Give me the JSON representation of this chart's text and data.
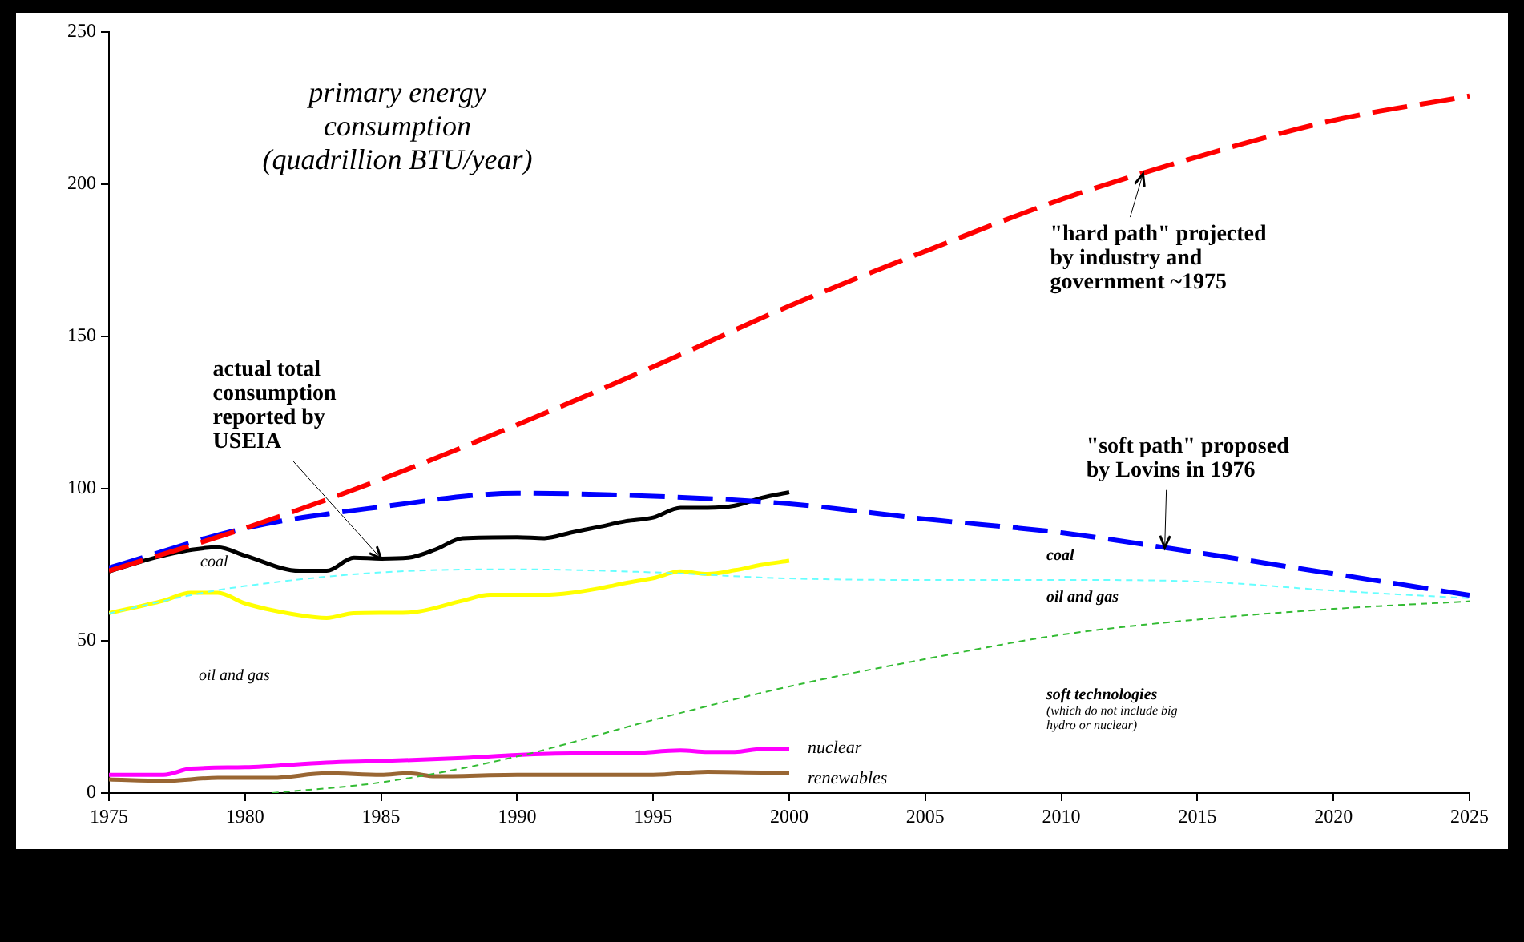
{
  "chart_data": {
    "type": "line",
    "title": "primary energy\nconsumption\n(quadrillion BTU/year)",
    "xlim": [
      1975,
      2025
    ],
    "xticks": [
      1975,
      1980,
      1985,
      1990,
      1995,
      2000,
      2005,
      2010,
      2015,
      2020,
      2025
    ],
    "ylim": [
      0,
      250
    ],
    "yticks": [
      0,
      50,
      100,
      150,
      200,
      250
    ],
    "grid": false,
    "legend": false,
    "marker": "none",
    "series": [
      {
        "type": "line",
        "color": "#ff0000",
        "line_style": "dashed",
        "x": [
          1975,
          1980,
          1985,
          1990,
          1995,
          2000,
          2005,
          2010,
          2015,
          2020,
          2025
        ],
        "values": [
          73,
          87,
          103,
          121,
          140,
          160,
          178,
          195,
          209,
          221,
          229
        ]
      },
      {
        "type": "line",
        "color": "#0000ff",
        "line_style": "dashed",
        "x": [
          1975,
          1980,
          1985,
          1990,
          1995,
          2000,
          2005,
          2010,
          2015,
          2020,
          2025
        ],
        "values": [
          74,
          87,
          94,
          98.5,
          97.5,
          95,
          90,
          85.5,
          79,
          72,
          65
        ]
      },
      {
        "type": "line",
        "color": "#66ffff",
        "line_style": "dashed",
        "x": [
          1975,
          1978,
          1980,
          1985,
          1990,
          1995,
          2000,
          2005,
          2010,
          2015,
          2020,
          2025
        ],
        "values": [
          59,
          65,
          68,
          72.5,
          73.5,
          72.5,
          70.5,
          70,
          70,
          69.5,
          66.5,
          64
        ]
      },
      {
        "type": "line",
        "color": "#33bb33",
        "line_style": "dashed",
        "x": [
          1981,
          1985,
          1990,
          1995,
          2000,
          2005,
          2010,
          2015,
          2020,
          2025
        ],
        "values": [
          0,
          3.5,
          12,
          24,
          35,
          44,
          52,
          57,
          60.5,
          63
        ]
      },
      {
        "type": "line",
        "color": "#000000",
        "line_style": "solid",
        "x": [
          1975,
          1977,
          1979,
          1980,
          1982,
          1983,
          1984,
          1985,
          1986,
          1987,
          1988,
          1990,
          1991,
          1992,
          1993,
          1994,
          1995,
          1996,
          1997,
          1998,
          1999,
          2000
        ],
        "values": [
          72.8,
          78,
          80.7,
          78,
          73,
          73,
          77.3,
          77,
          77.3,
          80,
          83.7,
          84,
          83.7,
          85.6,
          87.4,
          89.3,
          90.5,
          93.7,
          93.7,
          94.4,
          97,
          98.8
        ]
      },
      {
        "type": "line",
        "color": "#ffff00",
        "line_style": "solid",
        "x": [
          1975,
          1977,
          1978,
          1979,
          1980,
          1982,
          1983,
          1984,
          1986,
          1988,
          1989,
          1990,
          1991,
          1992,
          1993,
          1994,
          1995,
          1996,
          1997,
          1998,
          1999,
          2000
        ],
        "values": [
          59.1,
          63.2,
          65.8,
          65.8,
          62.3,
          58.4,
          57.5,
          59.1,
          59.3,
          63.2,
          65.1,
          65.1,
          65.1,
          65.8,
          67.2,
          69,
          70.6,
          72.8,
          72,
          73.2,
          75,
          76.3
        ]
      },
      {
        "type": "line",
        "color": "#ff00ff",
        "line_style": "solid",
        "x": [
          1975,
          1977,
          1978,
          1980,
          1983,
          1985,
          1988,
          1990,
          1992,
          1994,
          1996,
          1997,
          1998,
          1999,
          2000
        ],
        "values": [
          6,
          6,
          8,
          8.5,
          10,
          10.5,
          11.5,
          12.5,
          13,
          13,
          14,
          13.5,
          13.5,
          14.5,
          14.5
        ]
      },
      {
        "type": "line",
        "color": "#996633",
        "line_style": "solid",
        "x": [
          1975,
          1977,
          1979,
          1981,
          1983,
          1985,
          1986,
          1987,
          1990,
          1995,
          1997,
          2000
        ],
        "values": [
          4.5,
          4,
          5,
          5,
          6.5,
          6,
          6.5,
          5.5,
          6,
          6,
          7,
          6.5
        ]
      }
    ],
    "annotations": [
      {
        "text": "actual total\nconsumption\nreported by\nUSEIA",
        "x": 1985,
        "y": 77
      },
      {
        "text": "\"hard path\" projected\nby industry and\ngovernment ~1975",
        "x": 2013,
        "y": 203.4
      },
      {
        "text": "\"soft path\" proposed\nby Lovins in 1976",
        "x": 2013.8,
        "y": 80.6
      },
      "coal",
      "oil and gas",
      "nuclear",
      "renewables",
      "coal",
      "oil and gas",
      "soft technologies",
      "(which do not include big\nhydro or nuclear)"
    ]
  }
}
